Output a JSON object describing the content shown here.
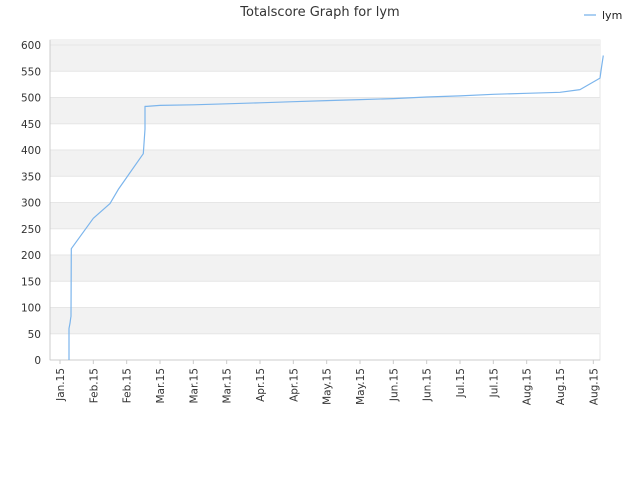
{
  "chart_data": {
    "type": "line",
    "title": "Totalscore Graph for lym",
    "xlabel": "",
    "ylabel": "",
    "ylim": [
      0,
      600
    ],
    "y_ticks": [
      0,
      50,
      100,
      150,
      200,
      250,
      300,
      350,
      400,
      450,
      500,
      550,
      600
    ],
    "x_tick_labels": [
      "Jan.15",
      "Feb.15",
      "Feb.15",
      "Mar.15",
      "Mar.15",
      "Mar.15",
      "Apr.15",
      "Apr.15",
      "May.15",
      "May.15",
      "Jun.15",
      "Jun.15",
      "Jul.15",
      "Jul.15",
      "Aug.15",
      "Aug.15",
      "Aug.15"
    ],
    "grid": "horizontal bands",
    "legend_position": "top-right",
    "colors": {
      "line": "#7cb5ec",
      "band": "#f2f2f2",
      "grid": "#e6e6e6"
    },
    "series": [
      {
        "name": "lym",
        "x": [
          0.27,
          0.27,
          0.3,
          0.32,
          0.33,
          0.34,
          1.0,
          1.5,
          1.75,
          2.5,
          2.55,
          2.55,
          2.6,
          3,
          4,
          5,
          6,
          7,
          8,
          9,
          10,
          11,
          12,
          13,
          14,
          15,
          15.6,
          16.2,
          16.25,
          16.3
        ],
        "values": [
          0,
          60,
          70,
          80,
          83,
          212,
          270,
          298,
          325,
          393,
          440,
          483,
          483,
          485,
          486,
          488,
          490,
          492,
          494,
          496,
          498,
          501,
          503,
          506,
          508,
          510,
          515,
          537,
          560,
          580
        ]
      }
    ]
  }
}
